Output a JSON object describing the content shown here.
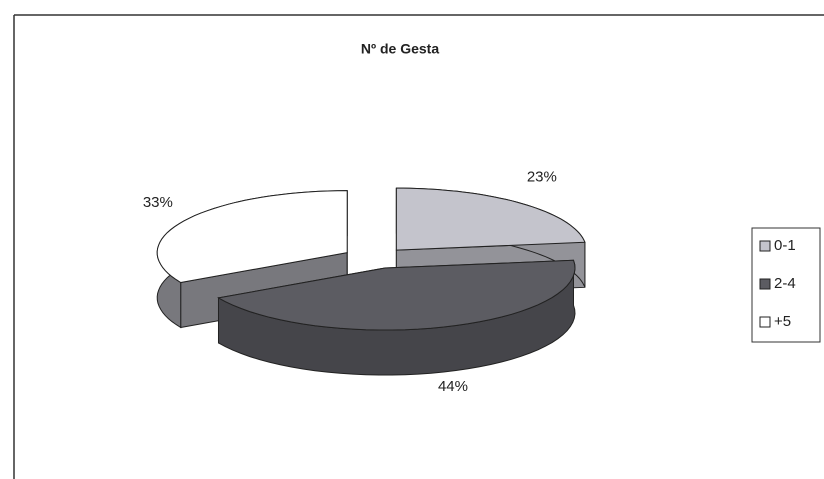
{
  "chart_data": {
    "type": "pie3d",
    "title": "Nº de Gesta",
    "categories": [
      "0-1",
      "2-4",
      "+5"
    ],
    "values": [
      23,
      44,
      33
    ],
    "value_labels": [
      "23%",
      "44%",
      "33%"
    ],
    "colors": [
      "#c4c4cc",
      "#5c5c62",
      "#ffffff"
    ],
    "legend": "right"
  }
}
